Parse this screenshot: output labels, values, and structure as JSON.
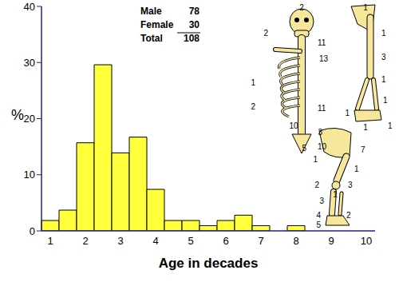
{
  "chart_data": {
    "type": "bar",
    "categories": [
      "1",
      null,
      "2",
      null,
      "3",
      null,
      "4",
      null,
      "5",
      null,
      "6",
      null,
      "7",
      null,
      "8",
      null,
      "9",
      null,
      "10"
    ],
    "values": [
      1.85,
      3.7,
      15.7,
      29.6,
      13.9,
      16.7,
      7.4,
      1.85,
      1.85,
      0.93,
      1.85,
      2.8,
      0.93,
      0,
      0.93,
      0,
      0,
      0,
      0
    ],
    "color": "#ffff3c",
    "ylim": [
      0,
      40
    ],
    "yticks": [
      0,
      10,
      20,
      30,
      40
    ],
    "x_label": "Age in decades",
    "y_label": "%",
    "annotations": [
      {
        "label": "Male",
        "value": 78
      },
      {
        "label": "Female",
        "value": 30
      },
      {
        "label": "Total",
        "value": 108
      }
    ]
  },
  "skeleton_labels": [
    2,
    2,
    11,
    13,
    1,
    2,
    11,
    10,
    10,
    1,
    1,
    3,
    1,
    1,
    1,
    1,
    1,
    3,
    5,
    7,
    1,
    1,
    3,
    2,
    1,
    3,
    4,
    2,
    5
  ]
}
